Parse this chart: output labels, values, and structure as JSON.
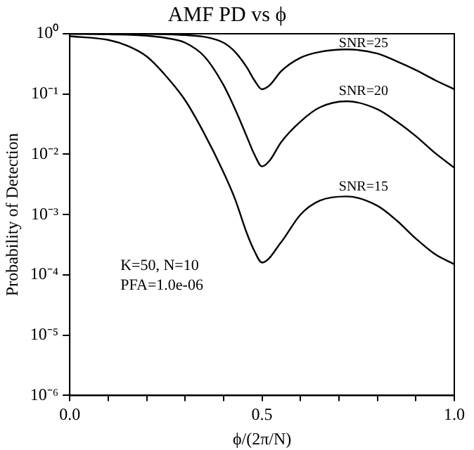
{
  "chart_data": {
    "type": "line",
    "title": "AMF PD vs ϕ",
    "xlabel": "ϕ/(2π/N)",
    "ylabel": "Probability of Detection",
    "log": "y",
    "grid": false,
    "legend": false,
    "marker": "none",
    "line_style": "solid",
    "xlim": [
      0,
      1
    ],
    "xticks": [
      {
        "value": 0,
        "label": "0.0"
      },
      {
        "value": 0.1,
        "label": null
      },
      {
        "value": 0.2,
        "label": null
      },
      {
        "value": 0.3,
        "label": null
      },
      {
        "value": 0.4,
        "label": null
      },
      {
        "value": 0.5,
        "label": "0.5"
      },
      {
        "value": 0.6,
        "label": null
      },
      {
        "value": 0.7,
        "label": null
      },
      {
        "value": 0.8,
        "label": null
      },
      {
        "value": 0.9,
        "label": null
      },
      {
        "value": 1,
        "label": "1.0"
      }
    ],
    "ylim": [
      1e-06,
      1
    ],
    "yticks": [
      {
        "value": 1e-06,
        "label": "10⁻⁶"
      },
      {
        "value": 1e-05,
        "label": "10⁻⁵"
      },
      {
        "value": 0.0001,
        "label": "10⁻⁴"
      },
      {
        "value": 0.001,
        "label": "10⁻³"
      },
      {
        "value": 0.01,
        "label": "10⁻²"
      },
      {
        "value": 0.1,
        "label": "10⁻¹"
      },
      {
        "value": 1,
        "label": "10⁰"
      }
    ],
    "series": [
      {
        "name": "SNR=25",
        "color": "#000000",
        "x": [
          0,
          0.2,
          0.3,
          0.35,
          0.4,
          0.43,
          0.46,
          0.48,
          0.5,
          0.52,
          0.55,
          0.6,
          0.65,
          0.72,
          0.8,
          0.85,
          0.9,
          0.95,
          1.0
        ],
        "values": [
          1,
          0.99,
          0.95,
          0.89,
          0.71,
          0.5,
          0.28,
          0.17,
          0.12,
          0.14,
          0.24,
          0.4,
          0.5,
          0.55,
          0.47,
          0.35,
          0.25,
          0.17,
          0.12
        ]
      },
      {
        "name": "SNR=20",
        "color": "#000000",
        "x": [
          0,
          0.1,
          0.2,
          0.25,
          0.3,
          0.35,
          0.4,
          0.43,
          0.46,
          0.48,
          0.5,
          0.52,
          0.55,
          0.6,
          0.65,
          0.72,
          0.8,
          0.85,
          0.9,
          0.95,
          1.0
        ],
        "values": [
          1,
          0.98,
          0.93,
          0.85,
          0.71,
          0.42,
          0.14,
          0.056,
          0.02,
          0.01,
          0.0063,
          0.0079,
          0.016,
          0.035,
          0.06,
          0.076,
          0.056,
          0.035,
          0.02,
          0.0105,
          0.006
        ]
      },
      {
        "name": "SNR=15",
        "color": "#000000",
        "x": [
          0,
          0.1,
          0.15,
          0.2,
          0.25,
          0.3,
          0.35,
          0.4,
          0.43,
          0.46,
          0.48,
          0.5,
          0.55,
          0.6,
          0.65,
          0.72,
          0.8,
          0.85,
          0.9,
          0.95,
          1.0
        ],
        "values": [
          0.91,
          0.79,
          0.63,
          0.42,
          0.2,
          0.079,
          0.022,
          0.005,
          0.0018,
          0.0005,
          0.00025,
          0.00016,
          0.00035,
          0.001,
          0.0017,
          0.002,
          0.0014,
          0.0008,
          0.0004,
          0.00022,
          0.00015
        ]
      }
    ],
    "annotations": [
      "K=50, N=10",
      "PFA=1.0e-06"
    ]
  }
}
